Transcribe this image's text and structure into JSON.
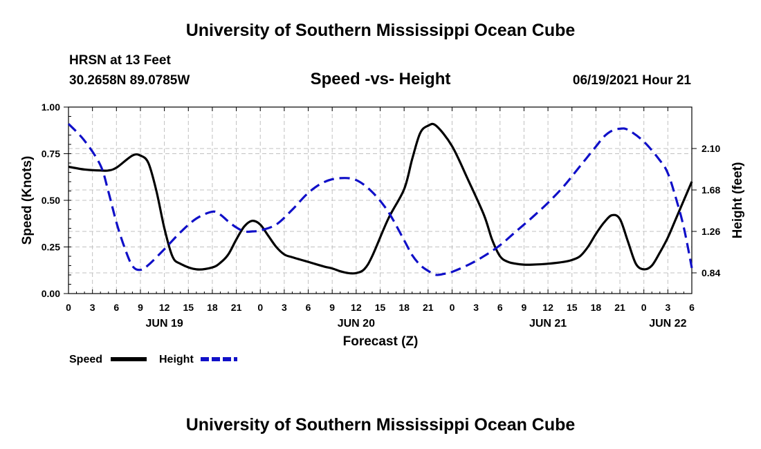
{
  "page": {
    "title_top": "University of Southern Mississippi Ocean Cube",
    "title_bottom": "University of Southern Mississippi Ocean Cube",
    "station": "HRSN at 13 Feet",
    "coords": "30.2658N  89.0785W",
    "subtitle": "Speed -vs- Height",
    "timestamp": "06/19/2021 Hour 21"
  },
  "colors": {
    "speed": "#000000",
    "height": "#1010c8",
    "grid": "#c0c0c0"
  },
  "chart_data": {
    "type": "line",
    "title": "Speed -vs- Height",
    "xlabel": "Forecast (Z)",
    "ylabel_left": "Speed (Knots)",
    "ylabel_right": "Height (feet)",
    "grid": true,
    "x_range_hours": [
      0,
      78
    ],
    "x_ticks": [
      "0",
      "3",
      "6",
      "9",
      "12",
      "15",
      "18",
      "21",
      "0",
      "3",
      "6",
      "9",
      "12",
      "15",
      "18",
      "21",
      "0",
      "3",
      "6",
      "9",
      "12",
      "15",
      "18",
      "21",
      "0",
      "3",
      "6"
    ],
    "date_labels": [
      {
        "label": "JUN 19",
        "hour": 12
      },
      {
        "label": "JUN 20",
        "hour": 36
      },
      {
        "label": "JUN 21",
        "hour": 60
      },
      {
        "label": "JUN 22",
        "hour": 75
      }
    ],
    "y_left": {
      "min": 0,
      "max": 1.0,
      "ticks": [
        "0.00",
        "0.25",
        "0.50",
        "0.75",
        "1.00"
      ]
    },
    "y_right": {
      "min": 0.63,
      "max": 2.52,
      "ticks": [
        "0.84",
        "1.26",
        "1.68",
        "2.10"
      ]
    },
    "legend": {
      "position": "bottom-left",
      "speed_label": "Speed",
      "height_label": "Height"
    },
    "series": [
      {
        "name": "Speed",
        "axis": "left",
        "style": "solid",
        "x": [
          0,
          2,
          4,
          5,
          6,
          8,
          9,
          10,
          11,
          12,
          13,
          14,
          16,
          18,
          19,
          20,
          21,
          22,
          23,
          24,
          25,
          26,
          27,
          28,
          30,
          32,
          33,
          34,
          35,
          36,
          37,
          38,
          40,
          42,
          43,
          44,
          45,
          46,
          48,
          50,
          52,
          53,
          54,
          55,
          56,
          57,
          58,
          60,
          62,
          63,
          64,
          65,
          66,
          67,
          68,
          69,
          70,
          71,
          72,
          73,
          74,
          75,
          76,
          77,
          78
        ],
        "values": [
          0.68,
          0.665,
          0.66,
          0.66,
          0.675,
          0.74,
          0.74,
          0.7,
          0.55,
          0.35,
          0.2,
          0.16,
          0.13,
          0.14,
          0.165,
          0.21,
          0.29,
          0.36,
          0.39,
          0.37,
          0.31,
          0.25,
          0.21,
          0.195,
          0.17,
          0.145,
          0.135,
          0.12,
          0.11,
          0.11,
          0.13,
          0.2,
          0.4,
          0.56,
          0.72,
          0.86,
          0.9,
          0.9,
          0.79,
          0.61,
          0.42,
          0.29,
          0.2,
          0.17,
          0.16,
          0.155,
          0.155,
          0.16,
          0.17,
          0.18,
          0.2,
          0.25,
          0.32,
          0.38,
          0.42,
          0.4,
          0.28,
          0.16,
          0.13,
          0.15,
          0.22,
          0.3,
          0.4,
          0.5,
          0.6
        ]
      },
      {
        "name": "Height",
        "axis": "right",
        "style": "dashed",
        "x": [
          0,
          2,
          4,
          5,
          6,
          7,
          8,
          9,
          10,
          12,
          14,
          16,
          18,
          19,
          20,
          21,
          22,
          23,
          24,
          26,
          28,
          30,
          32,
          34,
          36,
          38,
          40,
          42,
          43,
          44,
          45,
          46,
          47,
          48,
          50,
          52,
          54,
          56,
          58,
          60,
          62,
          64,
          66,
          67,
          68,
          69,
          70,
          72,
          74,
          75,
          76,
          77,
          78
        ],
        "values": [
          2.35,
          2.18,
          1.93,
          1.66,
          1.35,
          1.1,
          0.91,
          0.87,
          0.92,
          1.08,
          1.25,
          1.39,
          1.46,
          1.43,
          1.36,
          1.3,
          1.26,
          1.26,
          1.27,
          1.33,
          1.48,
          1.65,
          1.76,
          1.8,
          1.78,
          1.66,
          1.46,
          1.17,
          1.02,
          0.92,
          0.86,
          0.82,
          0.83,
          0.85,
          0.92,
          1.01,
          1.12,
          1.26,
          1.4,
          1.55,
          1.72,
          1.92,
          2.12,
          2.22,
          2.28,
          2.3,
          2.29,
          2.17,
          1.98,
          1.85,
          1.6,
          1.3,
          0.89
        ]
      }
    ]
  }
}
